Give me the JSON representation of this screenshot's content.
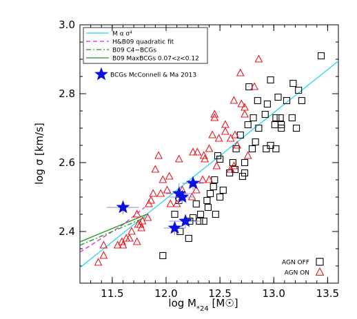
{
  "chart_data": {
    "type": "scatter",
    "xlabel": "log M",
    "xlabel_sub": "*24",
    "xlabel_unit_pre": " [M",
    "xlabel_unit_post": "]",
    "ylabel": "log σ [km/s]",
    "xlim": [
      11.2,
      13.6
    ],
    "ylim": [
      2.25,
      3.0
    ],
    "xticks": [
      11.5,
      12.0,
      12.5,
      13.0,
      13.5
    ],
    "xtick_labels": [
      "11.5",
      "12.0",
      "12.5",
      "13.0",
      "13.5"
    ],
    "yticks": [
      2.4,
      2.6,
      2.8,
      3.0
    ],
    "ytick_labels": [
      "2.4",
      "2.6",
      "2.8",
      "3.0"
    ],
    "grid": false,
    "colors": {
      "agn_off": "#000000",
      "agn_on": "#e8151b",
      "bcg": "#0a10e0",
      "msigma": "#22d8e8",
      "hb09": "#e81fd8",
      "c4": "#1a9a1a",
      "maxbcg": "#1a9a1a"
    },
    "legend_top": [
      {
        "label": "M α σ⁴",
        "style": "solid",
        "color": "#22d8e8"
      },
      {
        "label": "H&B09 quadratic fit",
        "style": "dashed",
        "color": "#e81fd8"
      },
      {
        "label": "B09 C4−BCGs",
        "style": "dashdot",
        "color": "#1a9a1a"
      },
      {
        "label": "B09 MaxBCGs 0.07<z<0.12",
        "style": "solid",
        "color": "#1a9a1a"
      }
    ],
    "legend_bcg": "BCGs McConnell & Ma 2013",
    "legend_bottom": [
      {
        "label": "AGN OFF",
        "marker": "square"
      },
      {
        "label": "AGN ON",
        "marker": "triangle"
      }
    ],
    "series": [
      {
        "name": "AGN OFF",
        "marker": "square",
        "points": [
          [
            13.44,
            2.91
          ],
          [
            12.97,
            2.84
          ],
          [
            13.18,
            2.83
          ],
          [
            12.77,
            2.82
          ],
          [
            13.23,
            2.81
          ],
          [
            13.04,
            2.79
          ],
          [
            12.85,
            2.78
          ],
          [
            12.94,
            2.77
          ],
          [
            13.12,
            2.78
          ],
          [
            13.26,
            2.78
          ],
          [
            12.92,
            2.74
          ],
          [
            13.02,
            2.73
          ],
          [
            13.06,
            2.73
          ],
          [
            13.17,
            2.73
          ],
          [
            12.81,
            2.73
          ],
          [
            12.76,
            2.71
          ],
          [
            13.01,
            2.71
          ],
          [
            13.07,
            2.71
          ],
          [
            12.86,
            2.7
          ],
          [
            13.07,
            2.7
          ],
          [
            13.21,
            2.7
          ],
          [
            12.69,
            2.68
          ],
          [
            12.83,
            2.66
          ],
          [
            12.97,
            2.65
          ],
          [
            12.93,
            2.64
          ],
          [
            13.02,
            2.64
          ],
          [
            12.8,
            2.64
          ],
          [
            12.65,
            2.64
          ],
          [
            12.48,
            2.62
          ],
          [
            12.5,
            2.61
          ],
          [
            12.62,
            2.6
          ],
          [
            12.73,
            2.6
          ],
          [
            12.64,
            2.58
          ],
          [
            12.59,
            2.57
          ],
          [
            12.73,
            2.57
          ],
          [
            12.45,
            2.55
          ],
          [
            12.44,
            2.53
          ],
          [
            12.71,
            2.56
          ],
          [
            12.41,
            2.51
          ],
          [
            12.53,
            2.52
          ],
          [
            12.5,
            2.5
          ],
          [
            12.38,
            2.49
          ],
          [
            12.12,
            2.49
          ],
          [
            12.28,
            2.48
          ],
          [
            12.39,
            2.47
          ],
          [
            12.32,
            2.45
          ],
          [
            12.08,
            2.45
          ],
          [
            12.46,
            2.45
          ],
          [
            12.25,
            2.44
          ],
          [
            12.31,
            2.43
          ],
          [
            12.35,
            2.43
          ],
          [
            12.22,
            2.43
          ],
          [
            12.13,
            2.4
          ],
          [
            12.21,
            2.38
          ],
          [
            11.97,
            2.33
          ]
        ]
      },
      {
        "name": "AGN ON",
        "marker": "triangle",
        "points": [
          [
            12.86,
            2.9
          ],
          [
            12.69,
            2.86
          ],
          [
            12.82,
            2.82
          ],
          [
            12.63,
            2.78
          ],
          [
            12.7,
            2.77
          ],
          [
            12.73,
            2.76
          ],
          [
            12.73,
            2.74
          ],
          [
            12.45,
            2.74
          ],
          [
            12.45,
            2.73
          ],
          [
            12.55,
            2.71
          ],
          [
            12.43,
            2.68
          ],
          [
            12.55,
            2.69
          ],
          [
            12.49,
            2.67
          ],
          [
            12.64,
            2.68
          ],
          [
            12.6,
            2.67
          ],
          [
            12.66,
            2.65
          ],
          [
            12.76,
            2.62
          ],
          [
            12.4,
            2.64
          ],
          [
            12.29,
            2.63
          ],
          [
            12.35,
            2.62
          ],
          [
            12.25,
            2.63
          ],
          [
            12.36,
            2.61
          ],
          [
            12.47,
            2.59
          ],
          [
            12.63,
            2.59
          ],
          [
            12.6,
            2.58
          ],
          [
            11.93,
            2.62
          ],
          [
            12.12,
            2.61
          ],
          [
            11.9,
            2.58
          ],
          [
            12.03,
            2.56
          ],
          [
            11.97,
            2.55
          ],
          [
            12.25,
            2.54
          ],
          [
            12.34,
            2.55
          ],
          [
            12.4,
            2.55
          ],
          [
            12.28,
            2.52
          ],
          [
            12.15,
            2.52
          ],
          [
            12.01,
            2.52
          ],
          [
            11.88,
            2.51
          ],
          [
            11.86,
            2.49
          ],
          [
            11.95,
            2.51
          ],
          [
            12.24,
            2.5
          ],
          [
            12.15,
            2.5
          ],
          [
            12.04,
            2.48
          ],
          [
            12.1,
            2.48
          ],
          [
            11.84,
            2.48
          ],
          [
            11.73,
            2.45
          ],
          [
            11.78,
            2.43
          ],
          [
            11.83,
            2.44
          ],
          [
            11.76,
            2.42
          ],
          [
            11.77,
            2.41
          ],
          [
            11.74,
            2.42
          ],
          [
            11.68,
            2.4
          ],
          [
            11.66,
            2.38
          ],
          [
            11.63,
            2.38
          ],
          [
            11.6,
            2.36
          ],
          [
            11.59,
            2.37
          ],
          [
            11.55,
            2.36
          ],
          [
            11.73,
            2.37
          ],
          [
            11.42,
            2.36
          ],
          [
            11.42,
            2.33
          ],
          [
            11.37,
            2.31
          ]
        ]
      },
      {
        "name": "BCGs McConnell & Ma 2013",
        "marker": "star",
        "points": [
          [
            11.6,
            2.47
          ],
          [
            12.08,
            2.41
          ],
          [
            12.12,
            2.51
          ],
          [
            12.15,
            2.5
          ],
          [
            12.18,
            2.43
          ],
          [
            12.25,
            2.54
          ]
        ],
        "xerr": [
          0.15,
          0.1,
          0.12,
          0.12,
          0.15,
          0.1
        ],
        "yerr": [
          0.02,
          0.02,
          0.03,
          0.02,
          0.02,
          0.02
        ]
      }
    ],
    "lines": [
      {
        "name": "M α σ⁴",
        "style": "solid",
        "color": "#22d8e8",
        "x": [
          11.2,
          13.6
        ],
        "y": [
          2.295,
          2.895
        ]
      },
      {
        "name": "H&B09 quadratic fit",
        "style": "dashed",
        "color": "#e81fd8",
        "x": [
          11.2,
          11.4,
          11.6,
          11.8
        ],
        "y": [
          2.34,
          2.38,
          2.42,
          2.47
        ]
      },
      {
        "name": "B09 C4−BCGs",
        "style": "dashdot",
        "color": "#1a9a1a",
        "x": [
          11.2,
          11.8
        ],
        "y": [
          2.36,
          2.44
        ]
      },
      {
        "name": "B09 MaxBCGs 0.07<z<0.12",
        "style": "solid",
        "color": "#1a9a1a",
        "x": [
          11.2,
          11.82
        ],
        "y": [
          2.37,
          2.45
        ]
      }
    ]
  }
}
